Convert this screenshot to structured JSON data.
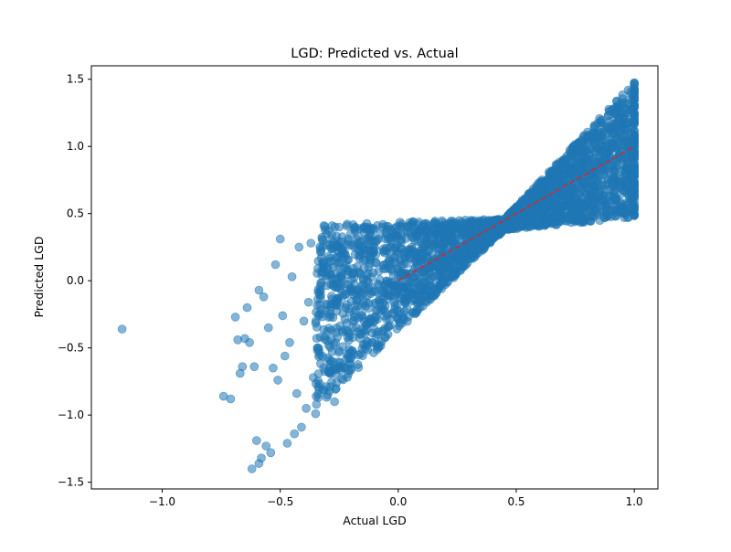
{
  "chart_data": {
    "type": "scatter",
    "title": "LGD: Predicted vs. Actual",
    "xlabel": "Actual LGD",
    "ylabel": "Predicted LGD",
    "xlim": [
      -1.3,
      1.1
    ],
    "ylim": [
      -1.55,
      1.6
    ],
    "xticks": [
      -1.0,
      -0.5,
      0.0,
      0.5,
      1.0
    ],
    "xtick_labels": [
      "−1.0",
      "−0.5",
      "0.0",
      "0.5",
      "1.0"
    ],
    "yticks": [
      -1.5,
      -1.0,
      -0.5,
      0.0,
      0.5,
      1.0,
      1.5
    ],
    "ytick_labels": [
      "−1.5",
      "−1.0",
      "−0.5",
      "0.0",
      "0.5",
      "1.0",
      "1.5"
    ],
    "grid": false,
    "colors": {
      "points": "#1f77b4",
      "reference_line": "#d62728"
    },
    "reference_line": {
      "style": "dashed",
      "x": [
        0.0,
        1.0
      ],
      "y": [
        0.0,
        1.0
      ]
    },
    "outlier_points": [
      [
        -1.17,
        -0.36
      ],
      [
        -0.74,
        -0.86
      ],
      [
        -0.71,
        -0.88
      ],
      [
        -0.69,
        -0.27
      ],
      [
        -0.68,
        -0.44
      ],
      [
        -0.67,
        -0.69
      ],
      [
        -0.66,
        -0.64
      ],
      [
        -0.65,
        -0.43
      ],
      [
        -0.64,
        -0.2
      ],
      [
        -0.63,
        -0.46
      ],
      [
        -0.62,
        -1.4
      ],
      [
        -0.61,
        -0.64
      ],
      [
        -0.6,
        -1.19
      ],
      [
        -0.59,
        -0.07
      ],
      [
        -0.59,
        -1.36
      ],
      [
        -0.58,
        -1.32
      ],
      [
        -0.57,
        -0.12
      ],
      [
        -0.56,
        -1.23
      ],
      [
        -0.55,
        -0.35
      ],
      [
        -0.54,
        -1.28
      ],
      [
        -0.53,
        -0.65
      ],
      [
        -0.52,
        0.12
      ],
      [
        -0.51,
        -0.74
      ],
      [
        -0.5,
        0.31
      ],
      [
        -0.49,
        -0.26
      ],
      [
        -0.48,
        -0.56
      ],
      [
        -0.47,
        -1.21
      ],
      [
        -0.46,
        -0.46
      ],
      [
        -0.45,
        0.03
      ],
      [
        -0.44,
        -1.14
      ],
      [
        -0.43,
        -0.84
      ],
      [
        -0.42,
        0.25
      ],
      [
        -0.41,
        -1.09
      ],
      [
        -0.4,
        -0.3
      ],
      [
        -0.39,
        -0.95
      ],
      [
        -0.38,
        -0.16
      ],
      [
        -0.37,
        0.28
      ],
      [
        -0.36,
        -0.72
      ],
      [
        -0.35,
        -0.99
      ],
      [
        -0.34,
        0.09
      ],
      [
        -0.33,
        -0.42
      ],
      [
        -0.32,
        -0.81
      ],
      [
        -0.31,
        0.38
      ],
      [
        -0.3,
        -0.18
      ],
      [
        -0.29,
        -0.62
      ],
      [
        -0.28,
        0.41
      ],
      [
        -0.27,
        -0.9
      ],
      [
        -0.26,
        -0.05
      ],
      [
        -0.25,
        -0.52
      ],
      [
        -0.24,
        0.2
      ]
    ],
    "band_regions": [
      {
        "x_start": -0.35,
        "x_end": 0.45,
        "y_upper_start": 0.42,
        "y_upper_end": 0.46,
        "y_lower_start": -0.95,
        "y_lower_end": 0.38
      },
      {
        "x_start": 0.45,
        "x_end": 1.0,
        "y_upper_start": 0.46,
        "y_upper_end": 1.48,
        "y_lower_start": 0.38,
        "y_lower_end": 0.47
      }
    ]
  }
}
